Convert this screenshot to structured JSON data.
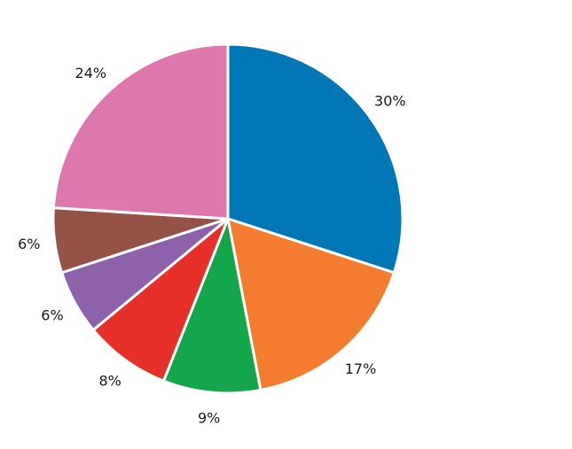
{
  "chart_data": {
    "type": "pie",
    "title": "",
    "start_angle": "12 o'clock",
    "direction": "clockwise",
    "slices": [
      {
        "label": "30%",
        "value": 30,
        "color": "#0077b6"
      },
      {
        "label": "17%",
        "value": 17,
        "color": "#f37c2e"
      },
      {
        "label": "9%",
        "value": 9,
        "color": "#13a64a"
      },
      {
        "label": "8%",
        "value": 8,
        "color": "#e8302b"
      },
      {
        "label": "6%",
        "value": 6,
        "color": "#8e62aa"
      },
      {
        "label": "6%",
        "value": 6,
        "color": "#955347"
      },
      {
        "label": "24%",
        "value": 24,
        "color": "#de77ae"
      }
    ]
  }
}
